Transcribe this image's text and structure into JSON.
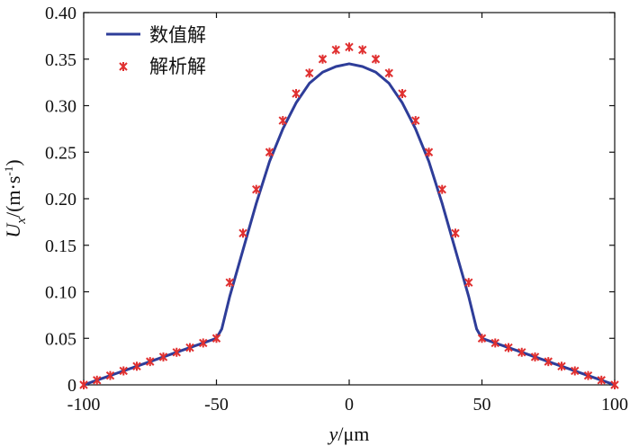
{
  "chart_data": {
    "type": "line",
    "title": "",
    "xlabel": {
      "var": "y",
      "unit": "/μm"
    },
    "ylabel": {
      "var": "U",
      "sub": "x",
      "unit": "/(m·s",
      "sup": "-1",
      "close": ")"
    },
    "xlim": [
      -100,
      100
    ],
    "ylim": [
      0,
      0.4
    ],
    "xticks": [
      -100,
      -50,
      0,
      50,
      100
    ],
    "xtick_labels": [
      "-100",
      "-50",
      "0",
      "50",
      "100"
    ],
    "yticks": [
      0,
      0.05,
      0.1,
      0.15,
      0.2,
      0.25,
      0.3,
      0.35,
      0.4
    ],
    "ytick_labels": [
      "0",
      "0.05",
      "0.10",
      "0.15",
      "0.20",
      "0.25",
      "0.30",
      "0.35",
      "0.40"
    ],
    "grid": false,
    "legend_position": "top-left",
    "series": [
      {
        "name": "数值解",
        "style": "line",
        "color": "#2e3d99",
        "x": [
          -100,
          -90,
          -80,
          -70,
          -60,
          -50,
          -48,
          -45,
          -40,
          -35,
          -30,
          -25,
          -20,
          -15,
          -10,
          -5,
          0,
          5,
          10,
          15,
          20,
          25,
          30,
          35,
          40,
          45,
          48,
          50,
          60,
          70,
          80,
          90,
          100
        ],
        "y": [
          0,
          0.01,
          0.02,
          0.03,
          0.04,
          0.05,
          0.06,
          0.095,
          0.145,
          0.195,
          0.24,
          0.275,
          0.303,
          0.324,
          0.336,
          0.342,
          0.345,
          0.342,
          0.336,
          0.324,
          0.303,
          0.275,
          0.24,
          0.195,
          0.145,
          0.095,
          0.06,
          0.05,
          0.04,
          0.03,
          0.02,
          0.01,
          0
        ]
      },
      {
        "name": "解析解",
        "style": "marker",
        "color": "#e03030",
        "x": [
          -100,
          -95,
          -90,
          -85,
          -80,
          -75,
          -70,
          -65,
          -60,
          -55,
          -50,
          -45,
          -40,
          -35,
          -30,
          -25,
          -20,
          -15,
          -10,
          -5,
          0,
          5,
          10,
          15,
          20,
          25,
          30,
          35,
          40,
          45,
          50,
          55,
          60,
          65,
          70,
          75,
          80,
          85,
          90,
          95,
          100
        ],
        "y": [
          0,
          0.005,
          0.01,
          0.015,
          0.02,
          0.025,
          0.03,
          0.035,
          0.04,
          0.045,
          0.05,
          0.11,
          0.163,
          0.21,
          0.25,
          0.284,
          0.313,
          0.335,
          0.35,
          0.36,
          0.363,
          0.36,
          0.35,
          0.335,
          0.313,
          0.284,
          0.25,
          0.21,
          0.163,
          0.11,
          0.05,
          0.045,
          0.04,
          0.035,
          0.03,
          0.025,
          0.02,
          0.015,
          0.01,
          0.005,
          0
        ]
      }
    ]
  }
}
